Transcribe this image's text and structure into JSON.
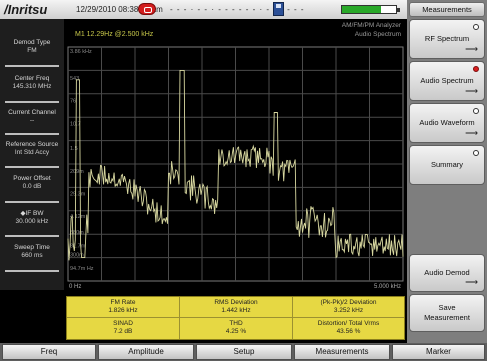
{
  "topbar": {
    "logo": "/Inritsu",
    "datetime": "12/29/2010 08:38:06 am",
    "gps_status": "- - - · - - · - - -   - - - · - - · - - -",
    "battery_level": 0.72
  },
  "sidebar": {
    "items": [
      {
        "label": "Demod Type",
        "value": "FM"
      },
      {
        "label": "Center Freq",
        "value": "145.310 MHz"
      },
      {
        "label": "Current Channel",
        "value": "--"
      },
      {
        "label": "Reference Source",
        "value": "Int Std Accy"
      },
      {
        "label": "Power Offset",
        "value": "0.0 dB"
      },
      {
        "label": "◆IF BW",
        "value": "30.000 kHz"
      },
      {
        "label": "Sweep Time",
        "value": "660 ms"
      }
    ]
  },
  "plot": {
    "marker_label": "M1  12.29Hz  @2.500 kHz",
    "title_line1": "AM/FM/PM Analyzer",
    "title_line2": "Audio Spectrum",
    "y_labels": [
      "3.86 kHz",
      "543",
      "76",
      "10.7",
      "1.5",
      "209m",
      "29.3m",
      "4.12m",
      "580m",
      "81.7m",
      "300m",
      "94.7m Hz"
    ],
    "x_left": "0 Hz",
    "x_right": "5.000 kHz",
    "trace_color": "#d8d8a0",
    "grid_color": "#4a4a4a"
  },
  "measurements": {
    "row1": [
      {
        "label": "FM Rate",
        "value": "1.826 kHz"
      },
      {
        "label": "RMS Deviation",
        "value": "1.442 kHz"
      },
      {
        "label": "(Pk-Pk)/2 Deviation",
        "value": "3.252 kHz"
      }
    ],
    "row2": [
      {
        "label": "SINAD",
        "value": "7.2 dB"
      },
      {
        "label": "THD",
        "value": "4.25 %"
      },
      {
        "label": "Distortion/ Total Vrms",
        "value": "43.56 %"
      }
    ]
  },
  "right_panel": {
    "title": "Measurements",
    "keys": [
      {
        "label": "RF Spectrum",
        "selected": false
      },
      {
        "label": "Audio Spectrum",
        "selected": true
      },
      {
        "label": "Audio Waveform",
        "selected": false
      },
      {
        "label": "Summary",
        "selected": false
      },
      {
        "label": "Audio Demod"
      },
      {
        "label_line1": "Save",
        "label_line2": "Measurement"
      }
    ]
  },
  "bottom_tabs": [
    "Freq",
    "Amplitude",
    "Setup",
    "Measurements",
    "Marker"
  ]
}
